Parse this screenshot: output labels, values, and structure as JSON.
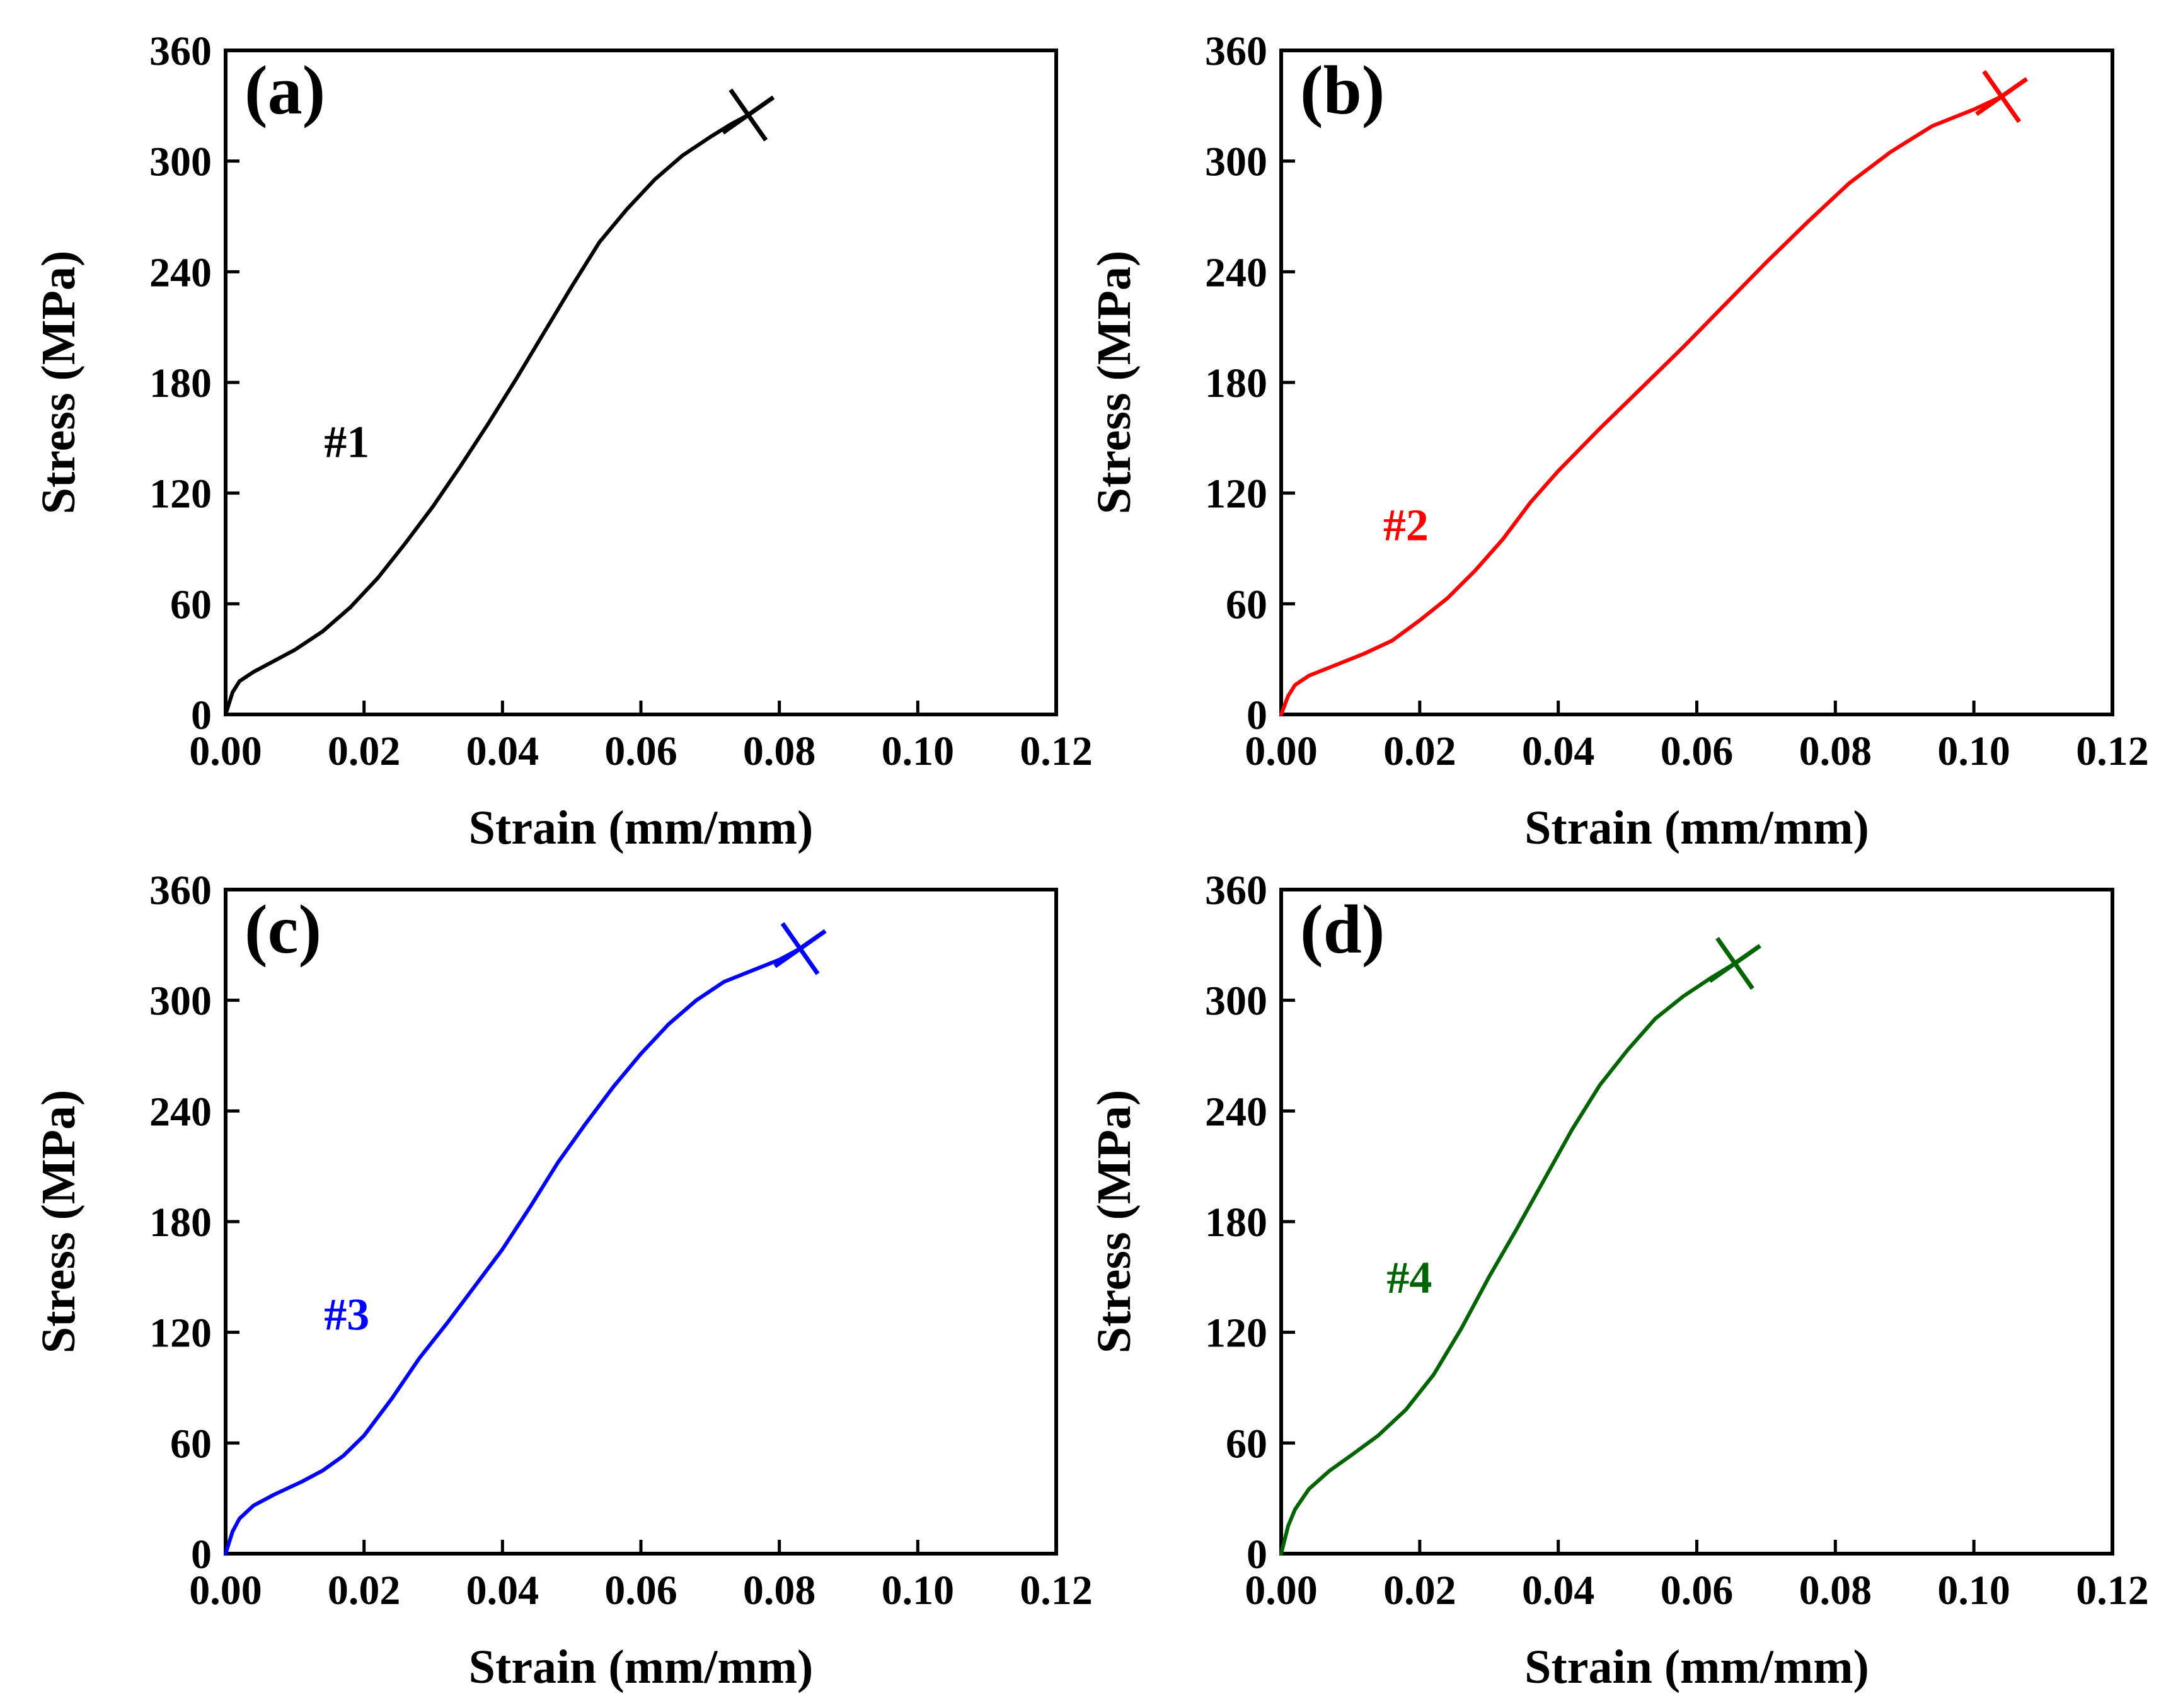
{
  "chart_data": [
    {
      "type": "line",
      "panel_label": "(a)",
      "xlabel": "Strain (mm/mm)",
      "ylabel": "Stress (MPa)",
      "xlim": [
        0,
        0.12
      ],
      "ylim": [
        0,
        360
      ],
      "xticks": [
        "0.00",
        "0.02",
        "0.04",
        "0.06",
        "0.08",
        "0.10",
        "0.12"
      ],
      "yticks": [
        "0",
        "60",
        "120",
        "180",
        "240",
        "300",
        "360"
      ],
      "grid": false,
      "series": [
        {
          "name": "#1",
          "color": "#000000",
          "x": [
            0,
            0.001,
            0.002,
            0.004,
            0.007,
            0.01,
            0.014,
            0.018,
            0.022,
            0.026,
            0.03,
            0.034,
            0.038,
            0.042,
            0.046,
            0.05,
            0.054,
            0.058,
            0.062,
            0.066,
            0.07,
            0.073,
            0.0755
          ],
          "y": [
            0,
            12,
            18,
            23,
            29,
            35,
            45,
            58,
            74,
            93,
            113,
            135,
            158,
            182,
            207,
            232,
            256,
            274,
            290,
            303,
            313,
            320,
            325
          ]
        }
      ],
      "annotations": [
        {
          "text": "#1",
          "x": 0.0175,
          "y": 148,
          "color": "#000000"
        },
        {
          "marker": "fracture-x",
          "x": 0.0755,
          "y": 325,
          "color": "#000000"
        }
      ]
    },
    {
      "type": "line",
      "panel_label": "(b)",
      "xlabel": "Strain (mm/mm)",
      "ylabel": "Stress (MPa)",
      "xlim": [
        0,
        0.12
      ],
      "ylim": [
        0,
        360
      ],
      "xticks": [
        "0.00",
        "0.02",
        "0.04",
        "0.06",
        "0.08",
        "0.10",
        "0.12"
      ],
      "yticks": [
        "0",
        "60",
        "120",
        "180",
        "240",
        "300",
        "360"
      ],
      "grid": false,
      "series": [
        {
          "name": "#2",
          "color": "#ff0000",
          "x": [
            0,
            0.001,
            0.002,
            0.004,
            0.008,
            0.012,
            0.016,
            0.02,
            0.024,
            0.028,
            0.032,
            0.036,
            0.04,
            0.046,
            0.052,
            0.058,
            0.064,
            0.07,
            0.076,
            0.082,
            0.088,
            0.094,
            0.1,
            0.104
          ],
          "y": [
            0,
            10,
            16,
            21,
            27,
            33,
            40,
            51,
            63,
            78,
            95,
            115,
            132,
            155,
            177,
            199,
            222,
            245,
            267,
            288,
            305,
            319,
            328,
            335
          ]
        }
      ],
      "annotations": [
        {
          "text": "#2",
          "x": 0.018,
          "y": 103,
          "color": "#ff0000"
        },
        {
          "marker": "fracture-x",
          "x": 0.104,
          "y": 335,
          "color": "#ff0000"
        }
      ]
    },
    {
      "type": "line",
      "panel_label": "(c)",
      "xlabel": "Strain (mm/mm)",
      "ylabel": "Stress (MPa)",
      "xlim": [
        0,
        0.12
      ],
      "ylim": [
        0,
        360
      ],
      "xticks": [
        "0.00",
        "0.02",
        "0.04",
        "0.06",
        "0.08",
        "0.10",
        "0.12"
      ],
      "yticks": [
        "0",
        "60",
        "120",
        "180",
        "240",
        "300",
        "360"
      ],
      "grid": false,
      "series": [
        {
          "name": "#3",
          "color": "#0000ff",
          "x": [
            0,
            0.001,
            0.002,
            0.004,
            0.007,
            0.011,
            0.014,
            0.017,
            0.02,
            0.024,
            0.028,
            0.032,
            0.036,
            0.04,
            0.044,
            0.048,
            0.052,
            0.056,
            0.06,
            0.064,
            0.068,
            0.072,
            0.076,
            0.08,
            0.083
          ],
          "y": [
            0,
            12,
            19,
            26,
            32,
            39,
            45,
            53,
            64,
            84,
            106,
            125,
            145,
            165,
            188,
            212,
            233,
            253,
            271,
            287,
            300,
            310,
            316,
            322,
            328
          ]
        }
      ],
      "annotations": [
        {
          "text": "#3",
          "x": 0.0175,
          "y": 130,
          "color": "#0000ff"
        },
        {
          "marker": "fracture-x",
          "x": 0.083,
          "y": 328,
          "color": "#0000ff"
        }
      ]
    },
    {
      "type": "line",
      "panel_label": "(d)",
      "xlabel": "Strain (mm/mm)",
      "ylabel": "Stress (MPa)",
      "xlim": [
        0,
        0.12
      ],
      "ylim": [
        0,
        360
      ],
      "xticks": [
        "0.00",
        "0.02",
        "0.04",
        "0.06",
        "0.08",
        "0.10",
        "0.12"
      ],
      "yticks": [
        "0",
        "60",
        "120",
        "180",
        "240",
        "300",
        "360"
      ],
      "grid": false,
      "series": [
        {
          "name": "#4",
          "color": "#006400",
          "x": [
            0,
            0.001,
            0.002,
            0.004,
            0.007,
            0.01,
            0.014,
            0.018,
            0.022,
            0.026,
            0.03,
            0.034,
            0.038,
            0.042,
            0.046,
            0.05,
            0.054,
            0.058,
            0.062,
            0.0655
          ],
          "y": [
            0,
            15,
            24,
            35,
            45,
            53,
            64,
            78,
            97,
            122,
            150,
            176,
            203,
            230,
            254,
            273,
            290,
            302,
            312,
            320
          ]
        }
      ],
      "annotations": [
        {
          "text": "#4",
          "x": 0.0185,
          "y": 150,
          "color": "#006400"
        },
        {
          "marker": "fracture-x",
          "x": 0.0655,
          "y": 320,
          "color": "#006400"
        }
      ]
    }
  ]
}
